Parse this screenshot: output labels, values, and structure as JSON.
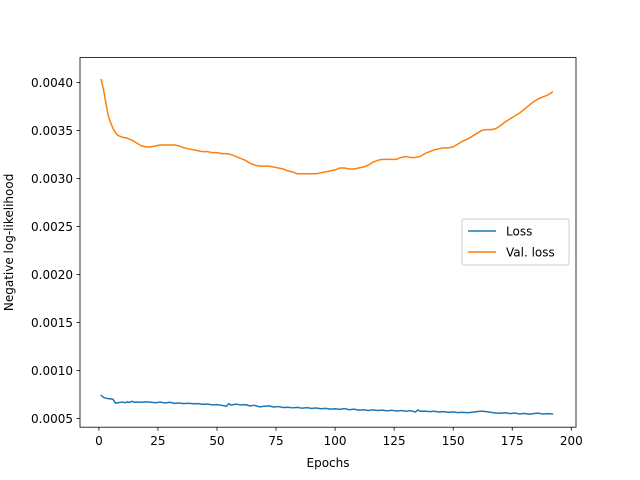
{
  "chart_data": {
    "type": "line",
    "title": "",
    "xlabel": "Epochs",
    "ylabel": "Negative log-likelihood",
    "xlim": [
      -8,
      202
    ],
    "ylim": [
      0.00041,
      0.00426
    ],
    "xticks": [
      0,
      25,
      50,
      75,
      100,
      125,
      150,
      175,
      200
    ],
    "yticks": [
      0.0005,
      0.001,
      0.0015,
      0.002,
      0.0025,
      0.003,
      0.0035,
      0.004
    ],
    "ytick_labels": [
      "0.0005",
      "0.0010",
      "0.0015",
      "0.0020",
      "0.0025",
      "0.0030",
      "0.0035",
      "0.0040"
    ],
    "grid": false,
    "legend_position": "center-right",
    "series": [
      {
        "name": "Loss",
        "color": "#1f77b4",
        "points": [
          [
            1,
            0.00074
          ],
          [
            2,
            0.00072
          ],
          [
            3,
            0.000712
          ],
          [
            4,
            0.000708
          ],
          [
            5,
            0.000705
          ],
          [
            6,
            0.0007
          ],
          [
            7,
            0.00066
          ],
          [
            8,
            0.000665
          ],
          [
            9,
            0.000668
          ],
          [
            10,
            0.000672
          ],
          [
            11,
            0.000665
          ],
          [
            12,
            0.000675
          ],
          [
            13,
            0.000668
          ],
          [
            14,
            0.00068
          ],
          [
            15,
            0.00067
          ],
          [
            16,
            0.000672
          ],
          [
            18,
            0.000668
          ],
          [
            20,
            0.000675
          ],
          [
            22,
            0.00067
          ],
          [
            24,
            0.000665
          ],
          [
            26,
            0.000672
          ],
          [
            28,
            0.000662
          ],
          [
            30,
            0.00067
          ],
          [
            32,
            0.000658
          ],
          [
            34,
            0.000662
          ],
          [
            36,
            0.000656
          ],
          [
            38,
            0.00066
          ],
          [
            40,
            0.000654
          ],
          [
            42,
            0.000656
          ],
          [
            44,
            0.000648
          ],
          [
            46,
            0.000652
          ],
          [
            48,
            0.000642
          ],
          [
            50,
            0.000645
          ],
          [
            52,
            0.000638
          ],
          [
            54,
            0.000628
          ],
          [
            55,
            0.000655
          ],
          [
            56,
            0.00064
          ],
          [
            58,
            0.00065
          ],
          [
            60,
            0.000642
          ],
          [
            62,
            0.000645
          ],
          [
            64,
            0.000632
          ],
          [
            66,
            0.000638
          ],
          [
            68,
            0.000622
          ],
          [
            70,
            0.000628
          ],
          [
            72,
            0.000632
          ],
          [
            74,
            0.00062
          ],
          [
            76,
            0.000625
          ],
          [
            78,
            0.000615
          ],
          [
            80,
            0.000618
          ],
          [
            82,
            0.000612
          ],
          [
            84,
            0.000616
          ],
          [
            86,
            0.000608
          ],
          [
            88,
            0.000614
          ],
          [
            90,
            0.000606
          ],
          [
            92,
            0.00061
          ],
          [
            94,
            0.000602
          ],
          [
            96,
            0.000606
          ],
          [
            98,
            0.000598
          ],
          [
            100,
            0.000602
          ],
          [
            102,
            0.000596
          ],
          [
            104,
            0.000604
          ],
          [
            106,
            0.000592
          ],
          [
            108,
            0.000598
          ],
          [
            110,
            0.000588
          ],
          [
            112,
            0.000592
          ],
          [
            114,
            0.000584
          ],
          [
            116,
            0.00059
          ],
          [
            118,
            0.000584
          ],
          [
            120,
            0.000588
          ],
          [
            122,
            0.00058
          ],
          [
            124,
            0.000586
          ],
          [
            126,
            0.000578
          ],
          [
            128,
            0.000584
          ],
          [
            130,
            0.000576
          ],
          [
            132,
            0.000582
          ],
          [
            134,
            0.000568
          ],
          [
            135,
            0.00059
          ],
          [
            136,
            0.000576
          ],
          [
            138,
            0.000578
          ],
          [
            140,
            0.000572
          ],
          [
            142,
            0.000576
          ],
          [
            144,
            0.000568
          ],
          [
            146,
            0.000572
          ],
          [
            148,
            0.000565
          ],
          [
            150,
            0.00057
          ],
          [
            152,
            0.000562
          ],
          [
            154,
            0.000566
          ],
          [
            156,
            0.00056
          ],
          [
            158,
            0.000566
          ],
          [
            160,
            0.000572
          ],
          [
            162,
            0.000578
          ],
          [
            164,
            0.000572
          ],
          [
            166,
            0.000565
          ],
          [
            168,
            0.000558
          ],
          [
            170,
            0.000555
          ],
          [
            172,
            0.00056
          ],
          [
            174,
            0.000552
          ],
          [
            176,
            0.000558
          ],
          [
            178,
            0.000548
          ],
          [
            180,
            0.000554
          ],
          [
            182,
            0.000545
          ],
          [
            184,
            0.000552
          ],
          [
            186,
            0.000556
          ],
          [
            188,
            0.000548
          ],
          [
            190,
            0.000552
          ],
          [
            192,
            0.000548
          ]
        ]
      },
      {
        "name": "Val. loss",
        "color": "#ff7f0e",
        "points": [
          [
            1,
            0.00403
          ],
          [
            2,
            0.00392
          ],
          [
            3,
            0.00378
          ],
          [
            4,
            0.00365
          ],
          [
            5,
            0.00358
          ],
          [
            6,
            0.00352
          ],
          [
            7,
            0.00348
          ],
          [
            8,
            0.00345
          ],
          [
            10,
            0.00343
          ],
          [
            12,
            0.00342
          ],
          [
            14,
            0.0034
          ],
          [
            16,
            0.00337
          ],
          [
            18,
            0.00334
          ],
          [
            20,
            0.00333
          ],
          [
            22,
            0.00333
          ],
          [
            24,
            0.00334
          ],
          [
            26,
            0.00335
          ],
          [
            28,
            0.00335
          ],
          [
            30,
            0.00335
          ],
          [
            32,
            0.00335
          ],
          [
            34,
            0.00334
          ],
          [
            36,
            0.00332
          ],
          [
            38,
            0.00331
          ],
          [
            40,
            0.0033
          ],
          [
            42,
            0.00329
          ],
          [
            44,
            0.00328
          ],
          [
            46,
            0.00328
          ],
          [
            48,
            0.00327
          ],
          [
            50,
            0.00327
          ],
          [
            52,
            0.00326
          ],
          [
            54,
            0.00326
          ],
          [
            56,
            0.00325
          ],
          [
            58,
            0.00323
          ],
          [
            60,
            0.00321
          ],
          [
            62,
            0.00319
          ],
          [
            64,
            0.00316
          ],
          [
            66,
            0.00314
          ],
          [
            68,
            0.00313
          ],
          [
            70,
            0.00313
          ],
          [
            72,
            0.00313
          ],
          [
            74,
            0.00312
          ],
          [
            76,
            0.00311
          ],
          [
            78,
            0.0031
          ],
          [
            80,
            0.00308
          ],
          [
            82,
            0.00307
          ],
          [
            84,
            0.00305
          ],
          [
            86,
            0.00305
          ],
          [
            88,
            0.00305
          ],
          [
            90,
            0.00305
          ],
          [
            92,
            0.00305
          ],
          [
            94,
            0.00306
          ],
          [
            96,
            0.00307
          ],
          [
            98,
            0.00308
          ],
          [
            100,
            0.00309
          ],
          [
            102,
            0.00311
          ],
          [
            104,
            0.00311
          ],
          [
            106,
            0.0031
          ],
          [
            108,
            0.0031
          ],
          [
            110,
            0.00311
          ],
          [
            112,
            0.00312
          ],
          [
            114,
            0.00314
          ],
          [
            116,
            0.00317
          ],
          [
            118,
            0.00319
          ],
          [
            120,
            0.0032
          ],
          [
            122,
            0.0032
          ],
          [
            124,
            0.0032
          ],
          [
            126,
            0.0032
          ],
          [
            128,
            0.00322
          ],
          [
            130,
            0.00323
          ],
          [
            132,
            0.00322
          ],
          [
            134,
            0.00322
          ],
          [
            136,
            0.00323
          ],
          [
            138,
            0.00326
          ],
          [
            140,
            0.00328
          ],
          [
            142,
            0.0033
          ],
          [
            144,
            0.00331
          ],
          [
            146,
            0.00332
          ],
          [
            148,
            0.00332
          ],
          [
            150,
            0.00333
          ],
          [
            152,
            0.00336
          ],
          [
            154,
            0.00339
          ],
          [
            156,
            0.00341
          ],
          [
            158,
            0.00344
          ],
          [
            160,
            0.00347
          ],
          [
            162,
            0.0035
          ],
          [
            164,
            0.00351
          ],
          [
            166,
            0.00351
          ],
          [
            168,
            0.00352
          ],
          [
            170,
            0.00355
          ],
          [
            172,
            0.00359
          ],
          [
            174,
            0.00362
          ],
          [
            176,
            0.00365
          ],
          [
            178,
            0.00368
          ],
          [
            180,
            0.00372
          ],
          [
            182,
            0.00376
          ],
          [
            184,
            0.0038
          ],
          [
            186,
            0.00383
          ],
          [
            188,
            0.00385
          ],
          [
            190,
            0.00387
          ],
          [
            192,
            0.0039
          ]
        ]
      }
    ]
  }
}
